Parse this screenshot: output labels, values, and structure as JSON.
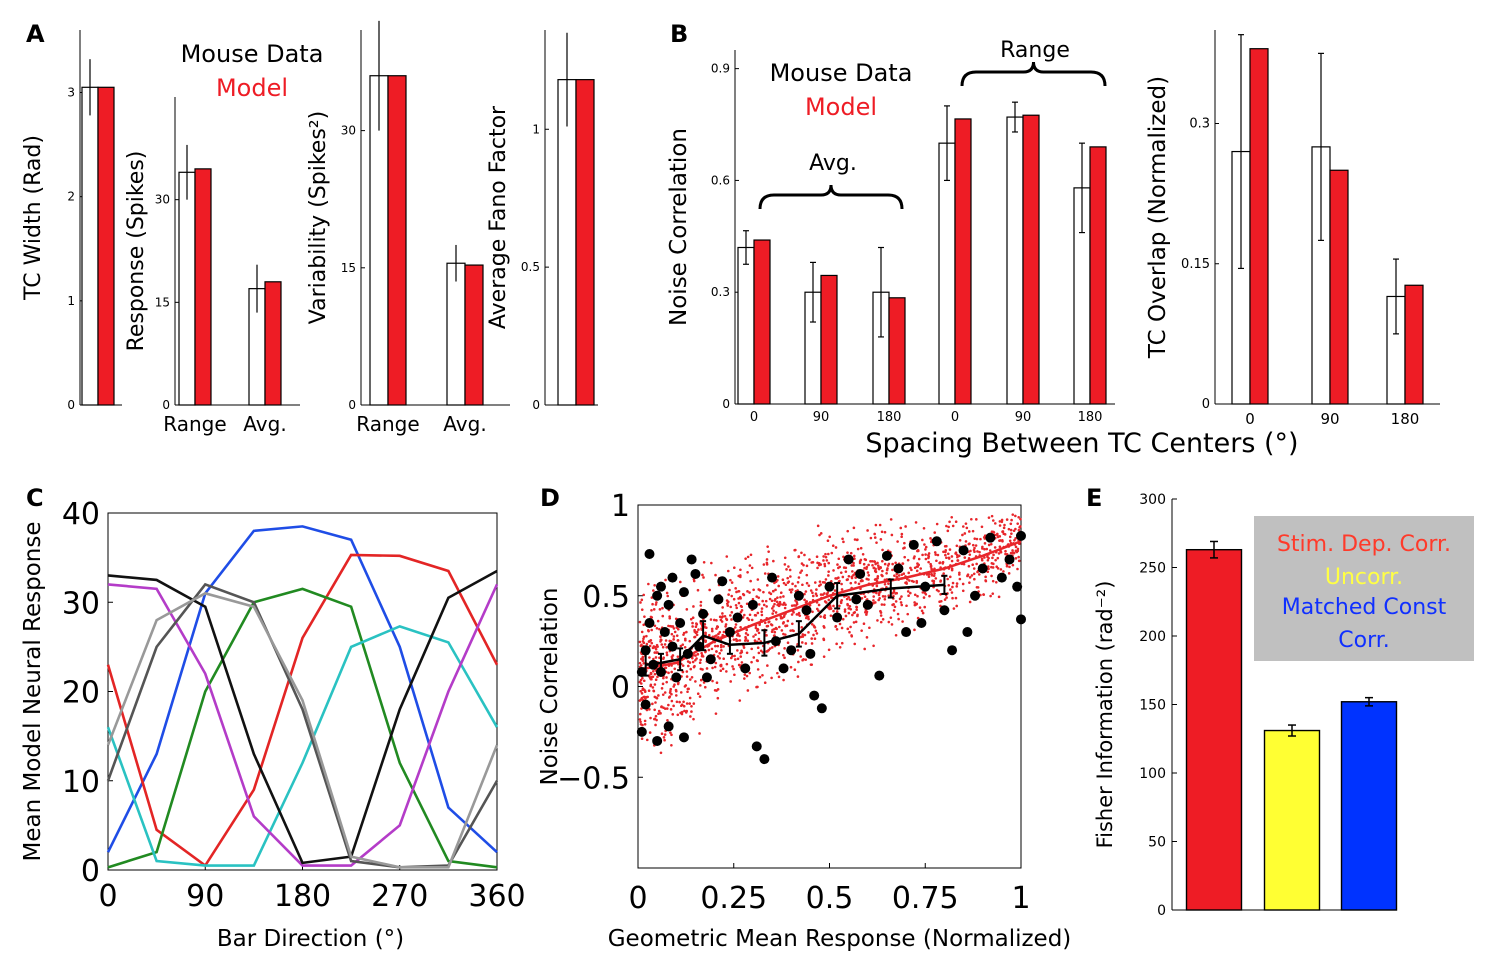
{
  "colors": {
    "data_bar": "#ffffff",
    "model_bar": "#ee1c25",
    "yellow": "#ffff33",
    "blue": "#0033ff",
    "legend_bg": "#c0c0c0",
    "scatter_red": "#e8262b",
    "legend_red_text": "#ff3a2a",
    "legend_yellow_text": "#ffff44",
    "legend_blue_text": "#1030ff"
  },
  "panel_labels": {
    "A": "A",
    "B": "B",
    "C": "C",
    "D": "D",
    "E": "E"
  },
  "legend_AB": {
    "data": "Mouse Data",
    "model": "Model"
  },
  "chart_data": [
    {
      "panel": "A1",
      "type": "bar",
      "ylabel": "TC Width (Rad)",
      "yticks": [
        "0",
        "1",
        "2",
        "3"
      ],
      "ylim": [
        0,
        3.6
      ],
      "categories": [
        ""
      ],
      "series": [
        {
          "name": "Mouse Data",
          "values": [
            3.05
          ],
          "err": [
            0.27
          ]
        },
        {
          "name": "Model",
          "values": [
            3.05
          ]
        }
      ]
    },
    {
      "panel": "A2",
      "type": "bar",
      "ylabel": "Response (Spikes)",
      "yticks": [
        "0",
        "15",
        "30"
      ],
      "ylim": [
        0,
        45
      ],
      "categories": [
        "Range",
        "Avg."
      ],
      "series": [
        {
          "name": "Mouse Data",
          "values": [
            34.0,
            17.0
          ],
          "err": [
            4.0,
            3.5
          ]
        },
        {
          "name": "Model",
          "values": [
            34.5,
            18.0
          ]
        }
      ]
    },
    {
      "panel": "A3",
      "type": "bar",
      "ylabel": "Variability (Spikes²)",
      "yticks": [
        "0",
        "15",
        "30"
      ],
      "ylim": [
        0,
        41
      ],
      "categories": [
        "Range",
        "Avg."
      ],
      "series": [
        {
          "name": "Mouse Data",
          "values": [
            36.0,
            15.5
          ],
          "err": [
            6.0,
            2.0
          ]
        },
        {
          "name": "Model",
          "values": [
            36.0,
            15.3
          ]
        }
      ]
    },
    {
      "panel": "A4",
      "type": "bar",
      "ylabel": "Average Fano Factor",
      "yticks": [
        "0",
        "0.5",
        "1"
      ],
      "ylim": [
        0,
        1.36
      ],
      "categories": [
        ""
      ],
      "series": [
        {
          "name": "Mouse Data",
          "values": [
            1.18
          ],
          "err": [
            0.17
          ]
        },
        {
          "name": "Model",
          "values": [
            1.18
          ]
        }
      ]
    },
    {
      "panel": "B1",
      "type": "bar",
      "ylabel": "Noise Correlation",
      "yticks": [
        "0",
        "0.3",
        "0.6",
        "0.9"
      ],
      "ylim": [
        0,
        0.95
      ],
      "categories": [
        "0",
        "90",
        "180",
        "0",
        "90",
        "180"
      ],
      "group_labels": [
        "Avg.",
        "Range"
      ],
      "series": [
        {
          "name": "Mouse Data",
          "values": [
            0.42,
            0.3,
            0.3,
            0.7,
            0.77,
            0.58
          ],
          "err": [
            0.045,
            0.08,
            0.12,
            0.1,
            0.04,
            0.12
          ]
        },
        {
          "name": "Model",
          "values": [
            0.44,
            0.345,
            0.285,
            0.765,
            0.775,
            0.69
          ]
        }
      ]
    },
    {
      "panel": "B2",
      "type": "bar",
      "ylabel": "TC Overlap (Normalized)",
      "yticks": [
        "0",
        "0.15",
        "0.3"
      ],
      "ylim": [
        0,
        0.4
      ],
      "categories": [
        "0",
        "90",
        "180"
      ],
      "series": [
        {
          "name": "Mouse Data",
          "values": [
            0.27,
            0.275,
            0.115
          ],
          "err": [
            0.125,
            0.1,
            0.04
          ]
        },
        {
          "name": "Model",
          "values": [
            0.38,
            0.25,
            0.127
          ]
        }
      ]
    },
    {
      "panel": "C",
      "type": "line",
      "xlabel": "Bar Direction (°)",
      "ylabel": "Mean Model Neural Response",
      "xticks": [
        "0",
        "90",
        "180",
        "270",
        "360"
      ],
      "yticks": [
        "0",
        "10",
        "20",
        "30",
        "40"
      ],
      "xlim": [
        0,
        360
      ],
      "ylim": [
        0,
        40
      ],
      "x": [
        0,
        45,
        90,
        135,
        180,
        225,
        270,
        315,
        360
      ],
      "series": [
        {
          "color": "#1f4de6",
          "values": [
            2,
            13,
            31,
            38,
            38.5,
            37,
            25,
            7,
            2
          ]
        },
        {
          "color": "#e32525",
          "values": [
            23,
            4.5,
            0.5,
            9,
            26,
            35.3,
            35.2,
            33.5,
            23
          ]
        },
        {
          "color": "#218a21",
          "values": [
            0.3,
            2,
            20,
            30,
            31.5,
            29.5,
            12,
            1,
            0.3
          ]
        },
        {
          "color": "#2ac2c2",
          "values": [
            16,
            1,
            0.5,
            0.5,
            12,
            25,
            27.3,
            25.5,
            16
          ]
        },
        {
          "color": "#b43cc8",
          "values": [
            32,
            31.5,
            22,
            6,
            0.5,
            0.5,
            5,
            20,
            32
          ]
        },
        {
          "color": "#111111",
          "values": [
            33,
            32.5,
            29.5,
            13,
            0.8,
            1.5,
            18,
            30.5,
            33.5
          ]
        },
        {
          "color": "#555555",
          "values": [
            10,
            25,
            32,
            30,
            18,
            1,
            0.3,
            0.5,
            10
          ]
        },
        {
          "color": "#999999",
          "values": [
            14,
            28,
            31,
            29.5,
            19,
            1.5,
            0.3,
            0.3,
            14
          ]
        }
      ]
    },
    {
      "panel": "D",
      "type": "scatter",
      "xlabel": "Geometric Mean Response (Normalized)",
      "ylabel": "Noise Correlation",
      "xticks": [
        "0",
        "0.25",
        "0.5",
        "0.75",
        "1"
      ],
      "yticks": [
        "−0.5",
        "0",
        "0.5",
        "1"
      ],
      "xlim": [
        0,
        1
      ],
      "ylim": [
        -1,
        1
      ],
      "model_trend": {
        "x": [
          0.02,
          0.1,
          0.2,
          0.3,
          0.4,
          0.5,
          0.6,
          0.7,
          0.8,
          0.9,
          1.0
        ],
        "y": [
          0.1,
          0.13,
          0.25,
          0.34,
          0.42,
          0.5,
          0.56,
          0.6,
          0.65,
          0.72,
          0.8
        ]
      },
      "data_binned": {
        "x": [
          0.02,
          0.06,
          0.11,
          0.17,
          0.24,
          0.33,
          0.42,
          0.52,
          0.66,
          0.8
        ],
        "y": [
          0.12,
          0.13,
          0.15,
          0.28,
          0.23,
          0.24,
          0.29,
          0.5,
          0.54,
          0.56
        ],
        "err": [
          0.06,
          0.05,
          0.06,
          0.08,
          0.05,
          0.07,
          0.07,
          0.07,
          0.05,
          0.05
        ]
      },
      "data_points": [
        [
          0.01,
          0.08
        ],
        [
          0.02,
          0.2
        ],
        [
          0.03,
          0.73
        ],
        [
          0.04,
          0.12
        ],
        [
          0.05,
          0.5
        ],
        [
          0.02,
          -0.1
        ],
        [
          0.01,
          -0.25
        ],
        [
          0.06,
          0.08
        ],
        [
          0.07,
          0.3
        ],
        [
          0.08,
          0.45
        ],
        [
          0.09,
          0.6
        ],
        [
          0.1,
          0.05
        ],
        [
          0.11,
          0.35
        ],
        [
          0.12,
          0.52
        ],
        [
          0.13,
          0.18
        ],
        [
          0.15,
          0.62
        ],
        [
          0.16,
          0.22
        ],
        [
          0.17,
          0.4
        ],
        [
          0.19,
          0.15
        ],
        [
          0.21,
          0.48
        ],
        [
          0.22,
          0.58
        ],
        [
          0.24,
          0.3
        ],
        [
          0.26,
          0.38
        ],
        [
          0.28,
          0.1
        ],
        [
          0.3,
          0.45
        ],
        [
          0.31,
          -0.33
        ],
        [
          0.33,
          -0.4
        ],
        [
          0.35,
          0.6
        ],
        [
          0.38,
          0.1
        ],
        [
          0.4,
          0.2
        ],
        [
          0.42,
          0.5
        ],
        [
          0.44,
          0.42
        ],
        [
          0.46,
          -0.05
        ],
        [
          0.48,
          -0.12
        ],
        [
          0.5,
          0.55
        ],
        [
          0.52,
          0.38
        ],
        [
          0.55,
          0.7
        ],
        [
          0.58,
          0.62
        ],
        [
          0.6,
          0.45
        ],
        [
          0.63,
          0.06
        ],
        [
          0.65,
          0.72
        ],
        [
          0.68,
          0.65
        ],
        [
          0.7,
          0.3
        ],
        [
          0.72,
          0.78
        ],
        [
          0.75,
          0.55
        ],
        [
          0.78,
          0.8
        ],
        [
          0.8,
          0.42
        ],
        [
          0.82,
          0.2
        ],
        [
          0.85,
          0.75
        ],
        [
          0.88,
          0.5
        ],
        [
          0.9,
          0.65
        ],
        [
          0.92,
          0.82
        ],
        [
          0.95,
          0.6
        ],
        [
          0.97,
          0.7
        ],
        [
          0.99,
          0.55
        ],
        [
          1.0,
          0.83
        ],
        [
          1.0,
          0.37
        ],
        [
          0.05,
          -0.3
        ],
        [
          0.08,
          -0.22
        ],
        [
          0.12,
          -0.28
        ],
        [
          0.14,
          0.7
        ],
        [
          0.03,
          0.35
        ],
        [
          0.06,
          0.55
        ],
        [
          0.09,
          0.22
        ],
        [
          0.18,
          0.05
        ],
        [
          0.36,
          0.25
        ],
        [
          0.45,
          0.18
        ],
        [
          0.57,
          0.48
        ],
        [
          0.74,
          0.35
        ],
        [
          0.86,
          0.3
        ]
      ]
    },
    {
      "panel": "E",
      "type": "bar",
      "ylabel": "Fisher Information (rad⁻²)",
      "yticks": [
        "0",
        "50",
        "100",
        "150",
        "200",
        "250",
        "300"
      ],
      "ylim": [
        0,
        300
      ],
      "categories": [
        "Stim. Dep. Corr.",
        "Uncorr.",
        "Matched Const Corr."
      ],
      "values": [
        263,
        131,
        152
      ],
      "err": [
        6,
        4,
        3
      ],
      "legend": [
        "Stim. Dep. Corr.",
        "Uncorr.",
        "Matched Const",
        "Corr."
      ]
    }
  ]
}
